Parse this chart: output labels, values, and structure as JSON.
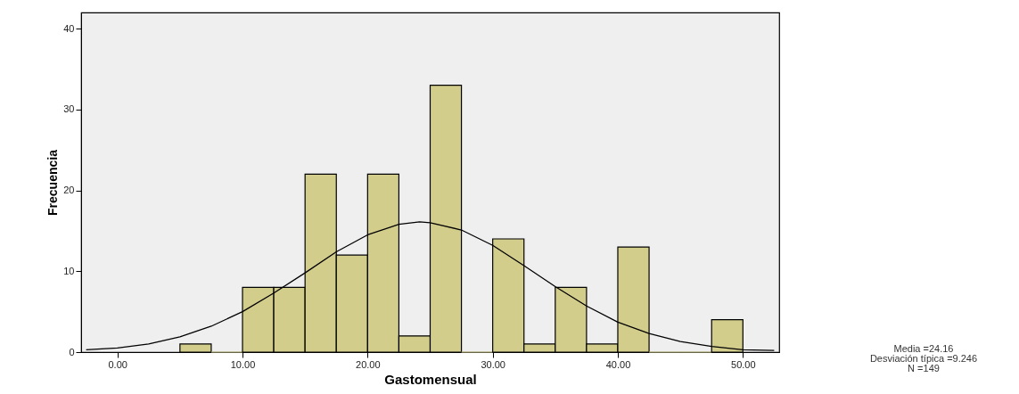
{
  "chart_data": {
    "type": "histogram",
    "xlabel": "Gastomensual",
    "ylabel": "Frecuencia",
    "bins": [
      5,
      7.5,
      10,
      12.5,
      15,
      17.5,
      20,
      22.5,
      25,
      27.5,
      30,
      32.5,
      35,
      37.5,
      40,
      42.5,
      45,
      47.5,
      50
    ],
    "series": [
      {
        "type": "histogram",
        "color": "#d3cd8c",
        "values": [
          1,
          0,
          8,
          8,
          22,
          12,
          22,
          2,
          33,
          0,
          14,
          1,
          8,
          1,
          13,
          0,
          0,
          4
        ]
      },
      {
        "type": "line",
        "color": "#000000",
        "x": [
          -2.5,
          0,
          2.5,
          5,
          7.5,
          10,
          12.5,
          15,
          17.5,
          20,
          22.5,
          24.16,
          25,
          27.5,
          30,
          32.5,
          35,
          37.5,
          40,
          42.5,
          45,
          47.5,
          50,
          52.5
        ],
        "values": [
          0.3,
          0.5,
          1.0,
          1.9,
          3.2,
          5.0,
          7.3,
          9.8,
          12.4,
          14.5,
          15.8,
          16.1,
          16.0,
          15.1,
          13.2,
          10.7,
          8.1,
          5.7,
          3.7,
          2.3,
          1.3,
          0.7,
          0.3,
          0.2
        ]
      }
    ],
    "xlim": [
      -2.9,
      52.9
    ],
    "xticks": [
      {
        "value": 0,
        "label": "0.00"
      },
      {
        "value": 10,
        "label": "10.00"
      },
      {
        "value": 20,
        "label": "20.00"
      },
      {
        "value": 30,
        "label": "30.00"
      },
      {
        "value": 40,
        "label": "40.00"
      },
      {
        "value": 50,
        "label": "50.00"
      }
    ],
    "ylim": [
      0,
      42
    ],
    "yticks": [
      0,
      10,
      20,
      30,
      40
    ],
    "grid": false,
    "marker": "none",
    "annotations": [
      "Media =24.16",
      "Desviación típica =9.246",
      "N =149"
    ]
  }
}
